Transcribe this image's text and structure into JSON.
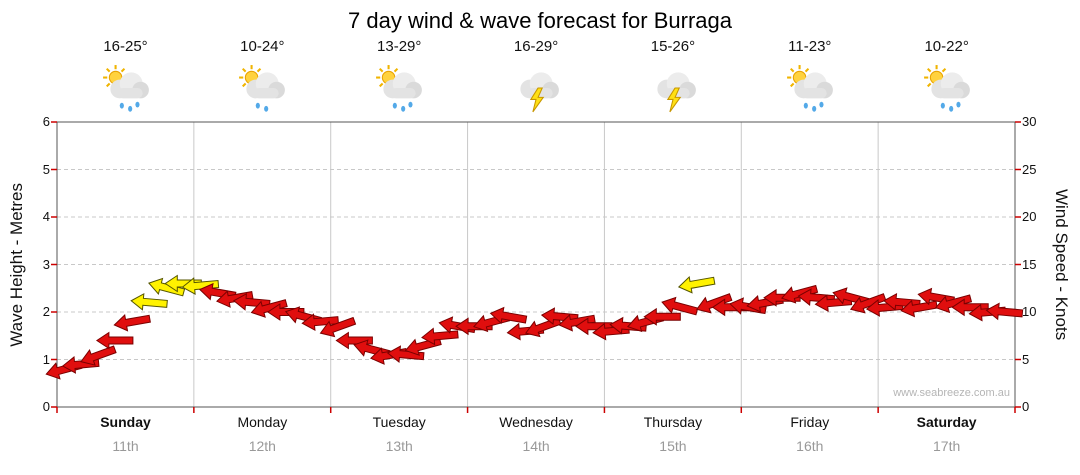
{
  "watermark": "www.seabreeze.com.au",
  "chart_data": {
    "type": "wind-arrow-series",
    "title": "7 day wind & wave forecast for Burraga",
    "series_name": "Wind",
    "left_axis": {
      "label": "Wave Height - Metres",
      "min": 0,
      "max": 6,
      "ticks": [
        0,
        1,
        2,
        3,
        4,
        5,
        6
      ]
    },
    "right_axis": {
      "label": "Wind Speed - Knots",
      "min": 0,
      "max": 30,
      "ticks": [
        0,
        5,
        10,
        15,
        20,
        25,
        30
      ]
    },
    "grid": true,
    "legend": "none",
    "days": [
      {
        "name": "Sunday",
        "date": "11th",
        "temp_range": "16-25°",
        "icon": "showers",
        "weekend": true
      },
      {
        "name": "Monday",
        "date": "12th",
        "temp_range": "10-24°",
        "icon": "few-showers",
        "weekend": false
      },
      {
        "name": "Tuesday",
        "date": "13th",
        "temp_range": "13-29°",
        "icon": "showers",
        "weekend": false
      },
      {
        "name": "Wednesday",
        "date": "14th",
        "temp_range": "16-29°",
        "icon": "storm",
        "weekend": false
      },
      {
        "name": "Thursday",
        "date": "15th",
        "temp_range": "15-26°",
        "icon": "storm",
        "weekend": false
      },
      {
        "name": "Friday",
        "date": "16th",
        "temp_range": "11-23°",
        "icon": "showers",
        "weekend": false
      },
      {
        "name": "Saturday",
        "date": "17th",
        "temp_range": "10-22°",
        "icon": "showers",
        "weekend": true
      }
    ],
    "samples_per_day": 8,
    "wind_speed_knots": [
      4.0,
      4.5,
      5.5,
      7.0,
      9.0,
      11.0,
      12.5,
      13.0,
      12.8,
      12.0,
      11.5,
      11.0,
      10.5,
      10.0,
      9.5,
      9.0,
      8.5,
      7.0,
      6.0,
      5.5,
      5.5,
      6.5,
      7.5,
      8.5,
      8.5,
      9.0,
      9.5,
      8.0,
      8.5,
      9.5,
      9.0,
      8.5,
      8.0,
      8.5,
      9.0,
      9.5,
      10.5,
      13.0,
      11.0,
      10.5,
      10.5,
      11.0,
      11.5,
      12.0,
      11.5,
      11.0,
      11.5,
      11.0,
      10.5,
      11.0,
      10.5,
      11.5,
      11.0,
      10.5,
      10.0,
      10.0
    ],
    "wind_direction_deg": [
      255,
      265,
      250,
      270,
      260,
      275,
      285,
      270,
      265,
      280,
      260,
      275,
      255,
      270,
      285,
      265,
      250,
      270,
      285,
      260,
      275,
      255,
      265,
      280,
      270,
      255,
      280,
      265,
      250,
      275,
      260,
      270,
      265,
      275,
      255,
      270,
      285,
      260,
      250,
      270,
      280,
      260,
      270,
      255,
      275,
      265,
      285,
      250,
      265,
      275,
      260,
      280,
      255,
      270,
      265,
      275
    ],
    "strong_indices": [
      5,
      6,
      7,
      8,
      37
    ],
    "colors": {
      "arrow": "#E00E0E",
      "arrow_outline": "#7A0000",
      "arrow_strong": "#FFF200",
      "arrow_strong_outline": "#555500",
      "grid": "#c8c8c8",
      "tick": "#cc0000",
      "axis": "#555555"
    }
  }
}
